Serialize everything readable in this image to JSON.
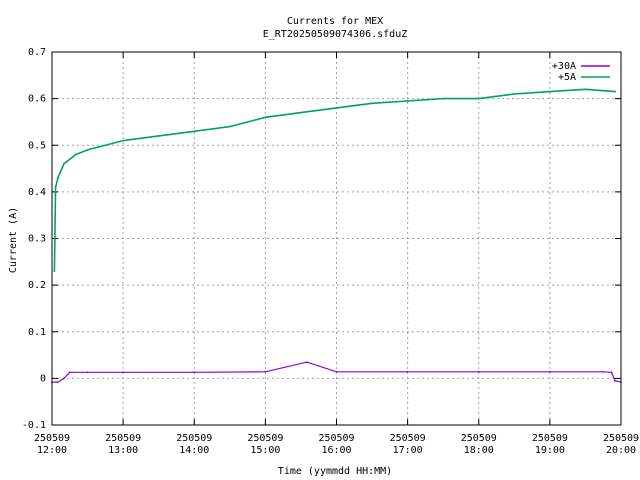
{
  "chart_data": {
    "type": "line",
    "title": "Currents for MEX",
    "subtitle": "E_RT20250509074306.sfduZ",
    "xlabel": "Time (yymmdd HH:MM)",
    "ylabel": "Current (A)",
    "xlim": [
      "250509 12:00",
      "250509 20:00"
    ],
    "ylim": [
      -0.1,
      0.7
    ],
    "grid": true,
    "legend_position": "top-right",
    "x_ticks": [
      {
        "date": "250509",
        "time": "12:00"
      },
      {
        "date": "250509",
        "time": "13:00"
      },
      {
        "date": "250509",
        "time": "14:00"
      },
      {
        "date": "250509",
        "time": "15:00"
      },
      {
        "date": "250509",
        "time": "16:00"
      },
      {
        "date": "250509",
        "time": "17:00"
      },
      {
        "date": "250509",
        "time": "18:00"
      },
      {
        "date": "250509",
        "time": "19:00"
      },
      {
        "date": "250509",
        "time": "20:00"
      }
    ],
    "y_ticks": [
      "-0.1",
      "0",
      "0.1",
      "0.2",
      "0.3",
      "0.4",
      "0.5",
      "0.6",
      "0.7"
    ],
    "series": [
      {
        "name": "+30A",
        "color": "#9400d3",
        "x": [
          "250509 12:00",
          "250509 12:05",
          "250509 12:10",
          "250509 12:15",
          "250509 12:30",
          "250509 13:00",
          "250509 14:00",
          "250509 15:00",
          "250509 15:35",
          "250509 16:00",
          "250509 17:00",
          "250509 18:00",
          "250509 19:00",
          "250509 19:45",
          "250509 19:52",
          "250509 19:55",
          "250509 20:00"
        ],
        "y": [
          -0.008,
          -0.008,
          0.0,
          0.013,
          0.013,
          0.013,
          0.013,
          0.014,
          0.035,
          0.014,
          0.014,
          0.014,
          0.014,
          0.014,
          0.013,
          -0.005,
          -0.008
        ]
      },
      {
        "name": "+5A",
        "color": "#009e73",
        "x": [
          "250509 12:02",
          "250509 12:03",
          "250509 12:05",
          "250509 12:10",
          "250509 12:20",
          "250509 12:30",
          "250509 13:00",
          "250509 13:30",
          "250509 14:00",
          "250509 14:30",
          "250509 15:00",
          "250509 15:30",
          "250509 16:00",
          "250509 16:30",
          "250509 17:00",
          "250509 17:30",
          "250509 18:00",
          "250509 18:30",
          "250509 19:00",
          "250509 19:30",
          "250509 19:55"
        ],
        "y": [
          0.23,
          0.41,
          0.43,
          0.46,
          0.48,
          0.49,
          0.51,
          0.52,
          0.53,
          0.54,
          0.56,
          0.57,
          0.58,
          0.59,
          0.595,
          0.6,
          0.6,
          0.61,
          0.615,
          0.62,
          0.615
        ]
      }
    ]
  }
}
